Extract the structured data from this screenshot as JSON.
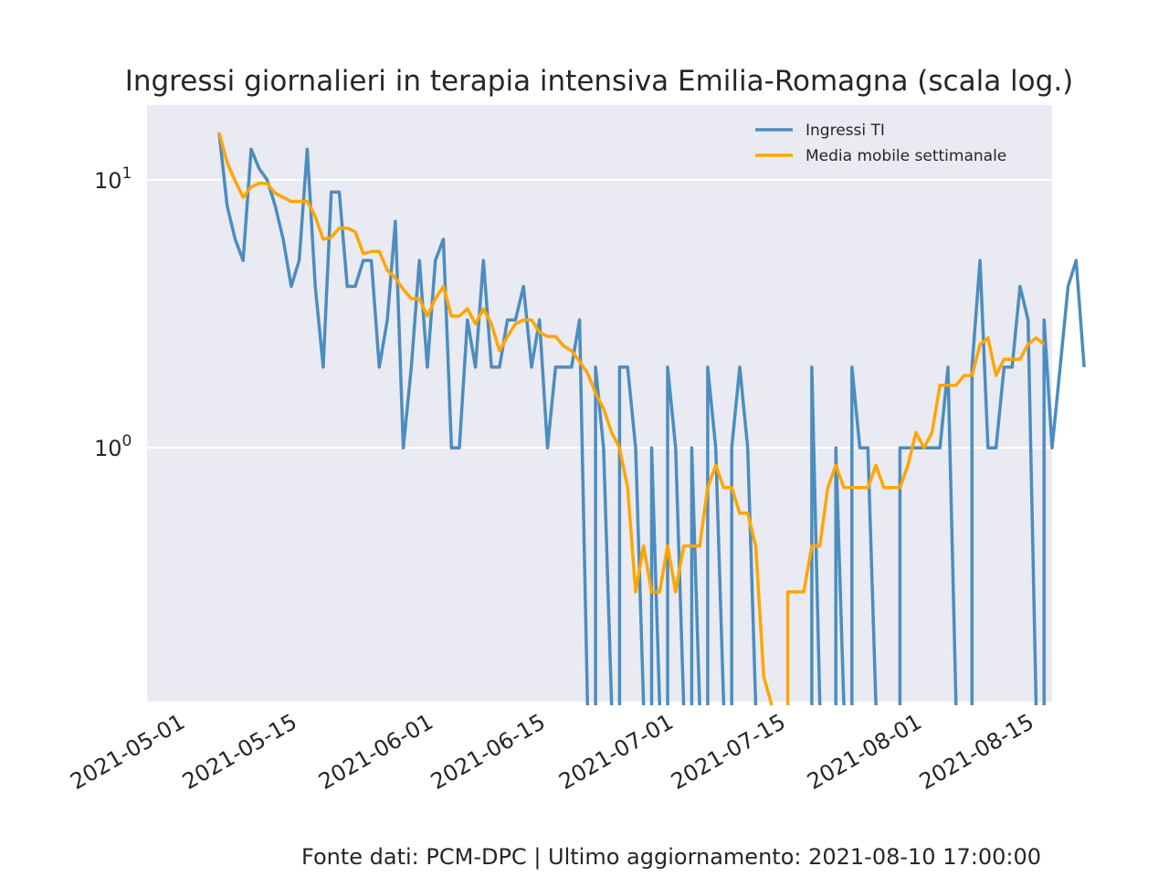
{
  "chart_data": {
    "type": "line",
    "title": "Ingressi giornalieri in terapia intensiva Emilia-Romagna (scala log.)",
    "footer": "Fonte dati: PCM-DPC | Ultimo aggiornamento: 2021-08-10 17:00:00",
    "xlabel": "",
    "ylabel": "",
    "y_scale": "log",
    "ylim": [
      0.113,
      19.0
    ],
    "xlim": [
      "2021-04-27",
      "2021-08-18"
    ],
    "grid": true,
    "legend_position": "upper-right",
    "y_ticks": [
      {
        "value": 1,
        "base": "10",
        "exp": "0"
      },
      {
        "value": 10,
        "base": "10",
        "exp": "1"
      }
    ],
    "x_ticks": [
      "2021-05-01",
      "2021-05-15",
      "2021-06-01",
      "2021-06-15",
      "2021-07-01",
      "2021-07-15",
      "2021-08-01",
      "2021-08-15"
    ],
    "x_start": "2021-05-06",
    "series": [
      {
        "name": "Ingressi TI",
        "color": "#4c8dbf",
        "values": [
          15,
          8,
          6,
          5,
          13,
          11,
          10,
          8,
          6,
          4,
          5,
          13,
          4,
          2,
          9,
          9,
          4,
          4,
          5,
          5,
          2,
          3,
          7,
          1,
          2,
          5,
          2,
          5,
          6,
          1,
          1,
          3,
          2,
          5,
          2,
          2,
          3,
          3,
          4,
          2,
          3,
          1,
          2,
          2,
          2,
          3,
          0,
          2,
          1,
          0,
          2,
          2,
          1,
          0,
          1,
          0,
          2,
          1,
          0,
          1,
          0,
          2,
          1,
          0,
          1,
          2,
          1,
          0,
          0,
          0,
          0,
          0,
          0,
          0,
          2,
          0,
          0,
          1,
          0,
          2,
          1,
          1,
          0,
          0,
          0,
          1,
          1,
          1,
          1,
          1,
          1,
          2,
          0,
          0,
          2,
          5,
          1,
          1,
          2,
          2,
          4,
          3,
          0,
          3,
          1,
          2,
          4,
          5,
          2
        ]
      },
      {
        "name": "Media mobile settimanale",
        "color": "#ffa500",
        "values": [
          15,
          11.6,
          9.9,
          8.6,
          9.4,
          9.7,
          9.7,
          8.9,
          8.6,
          8.3,
          8.3,
          8.3,
          7.3,
          6,
          6.1,
          6.6,
          6.6,
          6.4,
          5.3,
          5.4,
          5.4,
          4.6,
          4.3,
          3.9,
          3.6,
          3.6,
          3.1,
          3.6,
          4,
          3.1,
          3.1,
          3.3,
          2.9,
          3.3,
          2.9,
          2.3,
          2.6,
          2.9,
          3,
          3,
          2.7,
          2.6,
          2.6,
          2.4,
          2.3,
          2.1,
          1.9,
          1.6,
          1.4,
          1.14,
          1,
          0.71,
          0.29,
          0.43,
          0.29,
          0.29,
          0.43,
          0.29,
          0.43,
          0.43,
          0.43,
          0.71,
          0.86,
          0.71,
          0.71,
          0.57,
          0.57,
          0.43,
          0.14,
          0,
          0,
          0.29,
          0.29,
          0.29,
          0.43,
          0.43,
          0.71,
          0.86,
          0.71,
          0.71,
          0.71,
          0.71,
          0.86,
          0.71,
          0.71,
          0.71,
          0.86,
          1.14,
          1,
          1.14,
          1.71,
          1.71,
          1.71,
          1.86,
          1.86,
          2.43,
          2.57,
          1.86,
          2.14,
          2.14,
          2.14,
          2.43,
          2.57,
          2.43
        ]
      }
    ]
  }
}
